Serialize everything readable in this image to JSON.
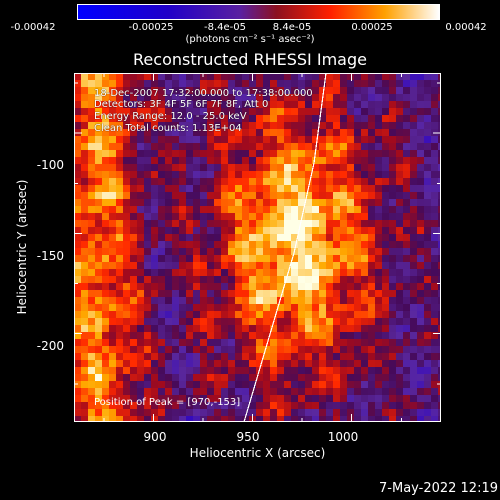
{
  "chart_data": {
    "type": "heatmap",
    "title": "Reconstructed RHESSI Image",
    "xlabel": "Heliocentric X (arcsec)",
    "ylabel": "Heliocentric Y (arcsec)",
    "xlim": [
      860,
      1045
    ],
    "ylim": [
      -244,
      -70
    ],
    "x_ticks": [
      900,
      950,
      1000
    ],
    "y_ticks": [
      -100,
      -150,
      -200
    ],
    "colorbar": {
      "ticks": [
        "-0.00042",
        "-0.00025",
        "-8.4e-05",
        "8.4e-05",
        "0.00025",
        "0.00042"
      ],
      "units": "(photons cm⁻² s⁻¹ asec⁻²)",
      "range": [
        -0.00042,
        0.00042
      ]
    },
    "annotations": {
      "time": "18-Dec-2007 17:32:00.000 to 17:38:00.000",
      "detectors": "Detectors: 3F 4F 5F 6F 7F 8F, Att 0",
      "energy": "Energy Range: 12.0 - 25.0 keV",
      "clean": "Clean     Total counts: 1.13E+04",
      "peak": "Position of Peak = [970,-153]"
    },
    "peak": [
      970,
      -153
    ]
  },
  "footer": "7-May-2022 12:19"
}
